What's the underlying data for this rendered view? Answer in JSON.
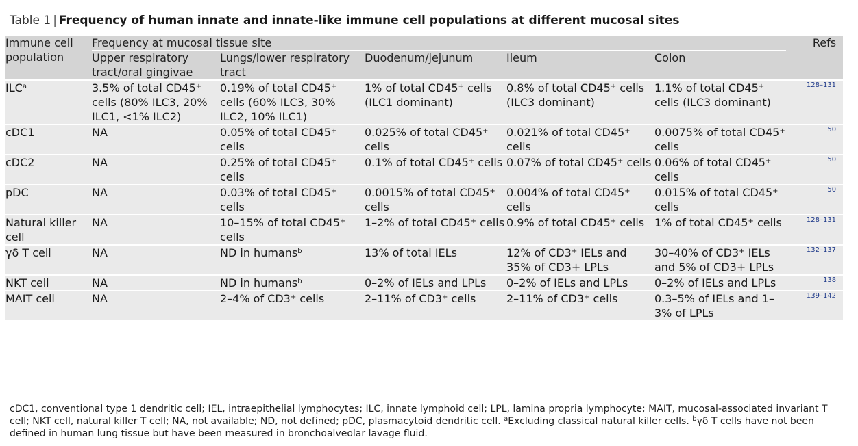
{
  "title": {
    "lead": "Table 1",
    "separator": "|",
    "text": "Frequency of human innate and innate-like immune cell populations at different mucosal sites"
  },
  "header": {
    "population": "Immune cell population",
    "group": "Frequency at mucosal tissue site",
    "refs": "Refs",
    "sites": [
      "Upper respiratory tract/oral gingivae",
      "Lungs/lower respiratory tract",
      "Duodenum/jejunum",
      "Ileum",
      "Colon"
    ]
  },
  "rows": [
    {
      "cell": "ILC",
      "cell_sup": "a",
      "v0": "3.5% of total CD45",
      "v0_sup": "+",
      "v0_tail": " cells (80% ILC3, 20% ILC1, <1% ILC2)",
      "v1": "0.19% of total CD45",
      "v1_sup": "+",
      "v1_tail": " cells (60% ILC3, 30% ILC2, 10% ILC1)",
      "v2": "1% of total CD45",
      "v2_sup": "+",
      "v2_tail": " cells (ILC1 dominant)",
      "v3": "0.8% of total CD45",
      "v3_sup": "+",
      "v3_tail": " cells (ILC3 dominant)",
      "v4": "1.1% of total CD45",
      "v4_sup": "+",
      "v4_tail": " cells (ILC3 dominant)",
      "refs": "128–131"
    },
    {
      "cell": "cDC1",
      "cell_sup": "",
      "v0": "NA",
      "v0_sup": "",
      "v0_tail": "",
      "v1": "0.05% of total CD45",
      "v1_sup": "+",
      "v1_tail": " cells",
      "v2": "0.025% of total CD45",
      "v2_sup": "+",
      "v2_tail": " cells",
      "v3": "0.021% of total CD45",
      "v3_sup": "+",
      "v3_tail": " cells",
      "v4": "0.0075% of total CD45",
      "v4_sup": "+",
      "v4_tail": " cells",
      "refs": "50"
    },
    {
      "cell": "cDC2",
      "cell_sup": "",
      "v0": "NA",
      "v0_sup": "",
      "v0_tail": "",
      "v1": "0.25% of total CD45",
      "v1_sup": "+",
      "v1_tail": " cells",
      "v2": "0.1% of total CD45",
      "v2_sup": "+",
      "v2_tail": " cells",
      "v3": "0.07% of total CD45",
      "v3_sup": "+",
      "v3_tail": " cells",
      "v4": "0.06% of total CD45",
      "v4_sup": "+",
      "v4_tail": " cells",
      "refs": "50"
    },
    {
      "cell": "pDC",
      "cell_sup": "",
      "v0": "NA",
      "v0_sup": "",
      "v0_tail": "",
      "v1": "0.03% of total CD45",
      "v1_sup": "+",
      "v1_tail": " cells",
      "v2": "0.0015% of total CD45",
      "v2_sup": "+",
      "v2_tail": " cells",
      "v3": "0.004% of total CD45",
      "v3_sup": "+",
      "v3_tail": " cells",
      "v4": "0.015% of total CD45",
      "v4_sup": "+",
      "v4_tail": " cells",
      "refs": "50"
    },
    {
      "cell": "Natural killer cell",
      "cell_sup": "",
      "v0": "NA",
      "v0_sup": "",
      "v0_tail": "",
      "v1": "10–15% of total CD45",
      "v1_sup": "+",
      "v1_tail": " cells",
      "v2": "1–2% of total CD45",
      "v2_sup": "+",
      "v2_tail": " cells",
      "v3": "0.9% of total CD45",
      "v3_sup": "+",
      "v3_tail": " cells",
      "v4": "1% of total CD45",
      "v4_sup": "+",
      "v4_tail": " cells",
      "refs": "128–131"
    },
    {
      "cell": "γδ T cell",
      "cell_sup": "",
      "v0": "NA",
      "v0_sup": "",
      "v0_tail": "",
      "v1": "ND in humans",
      "v1_sup": "b",
      "v1_tail": "",
      "v2": "13% of total IELs",
      "v2_sup": "",
      "v2_tail": "",
      "v3": "12% of CD3",
      "v3_sup": "+",
      "v3_tail": " IELs and 35% of CD3+ LPLs",
      "v4": "30–40% of CD3",
      "v4_sup": "+",
      "v4_tail": " IELs and 5% of CD3+ LPLs",
      "refs": "132–137"
    },
    {
      "cell": "NKT cell",
      "cell_sup": "",
      "v0": "NA",
      "v0_sup": "",
      "v0_tail": "",
      "v1": "ND in humans",
      "v1_sup": "b",
      "v1_tail": "",
      "v2": "0–2% of IELs and LPLs",
      "v2_sup": "",
      "v2_tail": "",
      "v3": "0–2% of IELs and LPLs",
      "v3_sup": "",
      "v3_tail": "",
      "v4": "0–2% of IELs and LPLs",
      "v4_sup": "",
      "v4_tail": "",
      "refs": "138"
    },
    {
      "cell": "MAIT cell",
      "cell_sup": "",
      "v0": "NA",
      "v0_sup": "",
      "v0_tail": "",
      "v1": "2–4% of CD3",
      "v1_sup": "+",
      "v1_tail": " cells",
      "v2": "2–11% of CD3",
      "v2_sup": "+",
      "v2_tail": " cells",
      "v3": "2–11% of CD3",
      "v3_sup": "+",
      "v3_tail": " cells",
      "v4": "0.3–5% of IELs and 1–3% of LPLs",
      "v4_sup": "",
      "v4_tail": "",
      "refs": "139–142"
    }
  ],
  "footnote": {
    "main": "cDC1, conventional type 1 dendritic cell; IEL, intraepithelial lymphocytes; ILC, innate lymphoid cell; LPL, lamina propria lymphocyte; MAIT, mucosal-associated invariant T cell; NKT cell, natural killer T cell; NA, not available; ND, not defined; pDC, plasmacytoid dendritic cell. ",
    "a_mark": "a",
    "a_text": "Excluding classical natural killer cells. ",
    "b_mark": "b",
    "b_text": "γδ T cells have not been defined in human lung tissue but have been measured in bronchoalveolar lavage fluid."
  }
}
